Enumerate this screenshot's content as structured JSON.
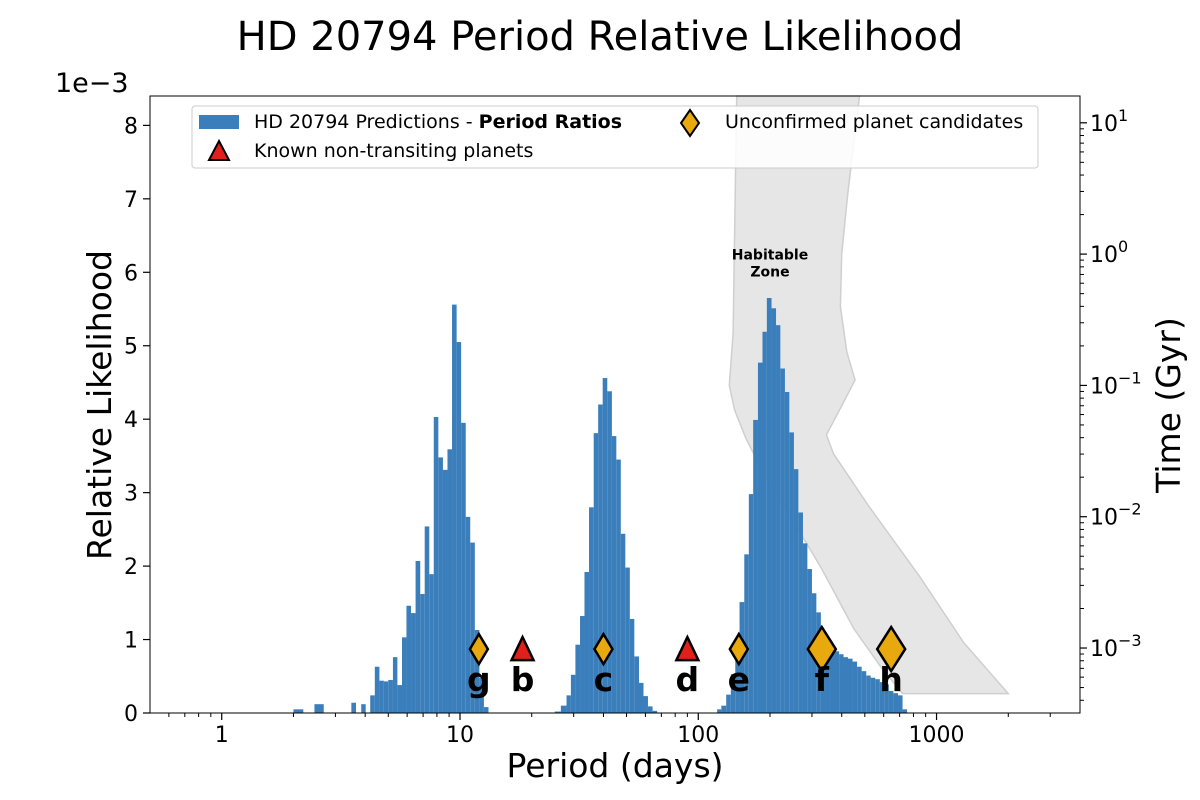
{
  "chart_data": {
    "type": "bar",
    "title": "HD 20794 Period Relative Likelihood",
    "xlabel": "Period (days)",
    "ylabel": "Relative Likelihood",
    "y2label": "Time (Gyr)",
    "y_offset_label": "1e−3",
    "x_scale": "log",
    "xlim": [
      0.5,
      4000
    ],
    "ylim": [
      0,
      8.4
    ],
    "x_ticks": [
      1,
      10,
      100,
      1000
    ],
    "x_tick_labels": [
      "1",
      "10",
      "100",
      "1000"
    ],
    "y_ticks": [
      0,
      1,
      2,
      3,
      4,
      5,
      6,
      7,
      8
    ],
    "y_tick_labels": [
      "0",
      "1",
      "2",
      "3",
      "4",
      "5",
      "6",
      "7",
      "8"
    ],
    "y2_scale": "log",
    "y2lim": [
      0.00032,
      16
    ],
    "y2_ticks": [
      0.001,
      0.01,
      0.1,
      1,
      10
    ],
    "y2_tick_bases": [
      "10",
      "10",
      "10",
      "10",
      "10"
    ],
    "y2_tick_exponents": [
      "−3",
      "−2",
      "−1",
      "0",
      "1"
    ],
    "grid": false,
    "legend_position": "top",
    "histogram": {
      "name": "HD 20794 Predictions - ",
      "name_bold": "Period Ratios",
      "color": "#3a7ebb",
      "bars": [
        [
          2.0,
          2.1,
          0.05
        ],
        [
          2.1,
          2.2,
          0.05
        ],
        [
          2.45,
          2.56,
          0.12
        ],
        [
          2.56,
          2.68,
          0.12
        ],
        [
          3.5,
          3.66,
          0.14
        ],
        [
          3.85,
          4.02,
          0.12
        ],
        [
          4.2,
          4.39,
          0.24
        ],
        [
          4.39,
          4.59,
          0.63
        ],
        [
          4.59,
          4.79,
          0.44
        ],
        [
          4.79,
          5.0,
          0.43
        ],
        [
          5.0,
          5.23,
          0.45
        ],
        [
          5.23,
          5.46,
          0.76
        ],
        [
          5.46,
          5.71,
          0.38
        ],
        [
          5.71,
          5.96,
          1.03
        ],
        [
          5.96,
          6.23,
          1.46
        ],
        [
          6.23,
          6.51,
          1.36
        ],
        [
          6.51,
          6.81,
          2.07
        ],
        [
          6.81,
          7.11,
          1.62
        ],
        [
          7.11,
          7.43,
          2.54
        ],
        [
          7.43,
          7.76,
          1.89
        ],
        [
          7.76,
          8.11,
          4.03
        ],
        [
          8.11,
          8.48,
          3.48
        ],
        [
          8.48,
          8.86,
          3.31
        ],
        [
          8.86,
          9.26,
          3.59
        ],
        [
          9.26,
          9.68,
          5.56
        ],
        [
          9.68,
          10.11,
          5.05
        ],
        [
          10.11,
          10.57,
          3.95
        ],
        [
          10.57,
          11.04,
          2.67
        ],
        [
          11.04,
          11.54,
          2.32
        ],
        [
          11.54,
          12.06,
          1.13
        ],
        [
          12.06,
          12.6,
          0.48
        ],
        [
          12.6,
          13.17,
          0.08
        ],
        [
          25.0,
          26.5,
          0.02
        ],
        [
          26.5,
          28.0,
          0.1
        ],
        [
          28.0,
          29.2,
          0.24
        ],
        [
          29.2,
          30.5,
          0.52
        ],
        [
          30.5,
          31.9,
          0.93
        ],
        [
          31.9,
          33.3,
          1.32
        ],
        [
          33.3,
          34.8,
          1.92
        ],
        [
          34.8,
          36.4,
          2.8
        ],
        [
          36.4,
          38.0,
          3.81
        ],
        [
          38.0,
          39.7,
          4.2
        ],
        [
          39.7,
          41.5,
          4.56
        ],
        [
          41.5,
          43.4,
          4.38
        ],
        [
          43.4,
          45.3,
          3.77
        ],
        [
          45.3,
          47.3,
          3.45
        ],
        [
          47.3,
          49.4,
          2.44
        ],
        [
          49.4,
          51.6,
          1.98
        ],
        [
          51.6,
          53.9,
          1.28
        ],
        [
          53.9,
          56.4,
          0.77
        ],
        [
          56.4,
          58.9,
          0.41
        ],
        [
          58.9,
          61.5,
          0.23
        ],
        [
          61.5,
          64.3,
          0.09
        ],
        [
          64.3,
          67.2,
          0.03
        ],
        [
          120.0,
          125.0,
          0.05
        ],
        [
          125.0,
          131.0,
          0.1
        ],
        [
          131.0,
          137.0,
          0.25
        ],
        [
          137.0,
          143.0,
          0.53
        ],
        [
          143.0,
          149.0,
          0.94
        ],
        [
          149.0,
          156.0,
          1.51
        ],
        [
          156.0,
          163.0,
          2.16
        ],
        [
          163.0,
          170.0,
          2.98
        ],
        [
          170.0,
          178.0,
          3.99
        ],
        [
          178.0,
          186.0,
          4.77
        ],
        [
          186.0,
          194.0,
          5.19
        ],
        [
          194.0,
          203.0,
          5.65
        ],
        [
          203.0,
          212.0,
          5.51
        ],
        [
          212.0,
          221.0,
          5.28
        ],
        [
          221.0,
          231.0,
          4.69
        ],
        [
          231.0,
          241.0,
          4.37
        ],
        [
          241.0,
          252.0,
          3.82
        ],
        [
          252.0,
          263.0,
          3.32
        ],
        [
          263.0,
          275.0,
          2.73
        ],
        [
          275.0,
          287.0,
          2.31
        ],
        [
          287.0,
          300.0,
          1.96
        ],
        [
          300.0,
          313.0,
          1.63
        ],
        [
          313.0,
          327.0,
          1.37
        ],
        [
          327.0,
          342.0,
          1.11
        ],
        [
          342.0,
          357.0,
          1.0
        ],
        [
          357.0,
          373.0,
          0.9
        ],
        [
          373.0,
          390.0,
          0.84
        ],
        [
          390.0,
          407.0,
          0.8
        ],
        [
          407.0,
          425.0,
          0.76
        ],
        [
          425.0,
          444.0,
          0.74
        ],
        [
          444.0,
          464.0,
          0.7
        ],
        [
          464.0,
          485.0,
          0.63
        ],
        [
          485.0,
          507.0,
          0.57
        ],
        [
          507.0,
          529.0,
          0.51
        ],
        [
          529.0,
          553.0,
          0.48
        ],
        [
          553.0,
          578.0,
          0.46
        ],
        [
          578.0,
          604.0,
          0.42
        ],
        [
          604.0,
          631.0,
          0.39
        ],
        [
          631.0,
          659.0,
          0.3
        ],
        [
          659.0,
          689.0,
          0.27
        ],
        [
          689.0,
          720.0,
          0.24
        ],
        [
          720.0,
          752.0,
          0.05
        ]
      ]
    },
    "habitable_zone": {
      "label_line1": "Habitable",
      "label_line2": "Zone",
      "label_x": 200,
      "label_y": 0.85,
      "fill": "#e6e6e6",
      "stroke": "#cfcfcf",
      "inner_edge": [
        [
          145,
          16
        ],
        [
          140,
          0.25
        ],
        [
          135,
          0.1
        ],
        [
          142,
          0.065
        ],
        [
          158,
          0.04
        ],
        [
          180,
          0.025
        ],
        [
          230,
          0.012
        ],
        [
          330,
          0.004
        ],
        [
          450,
          0.0014
        ],
        [
          590,
          0.0007
        ],
        [
          720,
          0.00045
        ],
        [
          2000,
          0.00045
        ]
      ],
      "outer_edge": [
        [
          2000,
          0.00045
        ],
        [
          1300,
          0.0011
        ],
        [
          850,
          0.0035
        ],
        [
          520,
          0.012
        ],
        [
          370,
          0.03
        ],
        [
          345,
          0.042
        ],
        [
          400,
          0.07
        ],
        [
          455,
          0.11
        ],
        [
          420,
          0.18
        ],
        [
          395,
          0.4
        ],
        [
          400,
          1.0
        ],
        [
          425,
          3.0
        ],
        [
          450,
          7.0
        ],
        [
          475,
          16
        ]
      ]
    },
    "known_planets": {
      "legend_label": "Known non-transiting planets",
      "color": "#e0201b",
      "points": [
        {
          "label": "b",
          "x": 18.3,
          "y": 0.87
        },
        {
          "label": "d",
          "x": 90.0,
          "y": 0.87
        }
      ]
    },
    "candidates": {
      "legend_label": "Unconfirmed planet candidates",
      "color": "#e8a90f",
      "points": [
        {
          "label": "g",
          "x": 12.0,
          "y": 0.87,
          "size": "small"
        },
        {
          "label": "c",
          "x": 40.0,
          "y": 0.87,
          "size": "small"
        },
        {
          "label": "e",
          "x": 148.0,
          "y": 0.87,
          "size": "small"
        },
        {
          "label": "f",
          "x": 330.0,
          "y": 0.87,
          "size": "large"
        },
        {
          "label": "h",
          "x": 645.0,
          "y": 0.87,
          "size": "large"
        }
      ]
    }
  }
}
